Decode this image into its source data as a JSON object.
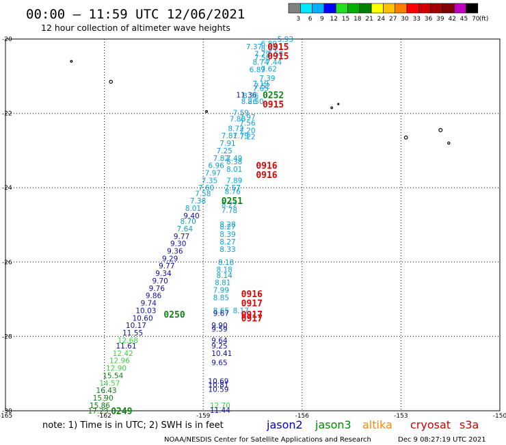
{
  "header": {
    "title": "00:00 – 11:59 UTC 12/06/2021",
    "subtitle": "12 hour collection of altimeter wave heights"
  },
  "colorbar": {
    "unit": "(ft)",
    "labels": [
      "3",
      "6",
      "9",
      "12",
      "15",
      "18",
      "21",
      "24",
      "27",
      "30",
      "33",
      "36",
      "39",
      "42",
      "45",
      "70"
    ],
    "colors": [
      "#808080",
      "#00e8ff",
      "#00b0ff",
      "#0000ff",
      "#20e020",
      "#00b000",
      "#008000",
      "#ffff00",
      "#ffc000",
      "#ff8000",
      "#ff0000",
      "#d00000",
      "#a00000",
      "#800000",
      "#c000c0",
      "#000000"
    ]
  },
  "footer": {
    "note": "note: 1) Time is in UTC; 2) SWH is in feet",
    "credit": "NOAA/NESDIS Center for Satellite Applications and Research",
    "timestamp": "Dec  9 08:27:19 UTC 2021"
  },
  "legend": [
    {
      "name": "jason2",
      "color": "#0000cc"
    },
    {
      "name": "jason3",
      "color": "#008800"
    },
    {
      "name": "altika",
      "color": "#ff8800"
    },
    {
      "name": "cryosat",
      "color": "#cc0000"
    },
    {
      "name": "s3a",
      "color": "#cc0000"
    }
  ],
  "chart_data": {
    "type": "scatter",
    "xlim": [
      -165,
      -150
    ],
    "ylim": [
      -30,
      -20
    ],
    "x_ticks": [
      -165,
      -162,
      -159,
      -156,
      -153,
      -150
    ],
    "y_ticks": [
      -20,
      -22,
      -24,
      -26,
      -28,
      -30
    ],
    "grid": true,
    "palette": {
      "cyan": "#0ca0d8",
      "blue": "#1010a0",
      "lgreen": "#40d040",
      "green": "#108010",
      "red": "#e00000"
    },
    "labels": [
      {
        "x": -157.25,
        "y": -20.12,
        "t": "6.80",
        "c": "cyan"
      },
      {
        "x": -156.75,
        "y": -20.0,
        "t": "5.93",
        "c": "cyan"
      },
      {
        "x": -157.7,
        "y": -20.2,
        "t": "7.37",
        "c": "cyan"
      },
      {
        "x": -157.45,
        "y": -20.4,
        "t": "7.79",
        "c": "cyan"
      },
      {
        "x": -157.05,
        "y": -20.4,
        "t": "6.58",
        "c": "cyan"
      },
      {
        "x": -157.25,
        "y": -20.25,
        "t": "8.64",
        "c": "cyan"
      },
      {
        "x": -157.45,
        "y": -20.5,
        "t": "7.58",
        "c": "cyan"
      },
      {
        "x": -157.5,
        "y": -20.62,
        "t": "8.74",
        "c": "cyan"
      },
      {
        "x": -157.1,
        "y": -20.62,
        "t": "7.44",
        "c": "cyan"
      },
      {
        "x": -157.6,
        "y": -20.82,
        "t": "6.89",
        "c": "cyan"
      },
      {
        "x": -157.25,
        "y": -20.8,
        "t": "7.62",
        "c": "cyan"
      },
      {
        "x": -157.3,
        "y": -21.05,
        "t": "7.39",
        "c": "cyan"
      },
      {
        "x": -157.5,
        "y": -21.2,
        "t": "7.19",
        "c": "cyan"
      },
      {
        "x": -157.5,
        "y": -21.33,
        "t": "7.65",
        "c": "cyan"
      },
      {
        "x": -157.45,
        "y": -21.26,
        "t": "7.52",
        "c": "cyan"
      },
      {
        "x": -158.0,
        "y": -21.5,
        "t": "11.36",
        "c": "blue"
      },
      {
        "x": -157.8,
        "y": -21.52,
        "t": "8.36",
        "c": "cyan"
      },
      {
        "x": -157.85,
        "y": -21.68,
        "t": "8.26",
        "c": "cyan"
      },
      {
        "x": -157.65,
        "y": -21.68,
        "t": "8.50",
        "c": "cyan"
      },
      {
        "x": -158.1,
        "y": -21.98,
        "t": "7.59",
        "c": "cyan"
      },
      {
        "x": -158.2,
        "y": -22.15,
        "t": "7.88",
        "c": "cyan"
      },
      {
        "x": -157.9,
        "y": -22.1,
        "t": "7.97",
        "c": "cyan"
      },
      {
        "x": -157.9,
        "y": -22.26,
        "t": "7.56",
        "c": "cyan"
      },
      {
        "x": -158.25,
        "y": -22.4,
        "t": "8.72",
        "c": "cyan"
      },
      {
        "x": -157.9,
        "y": -22.46,
        "t": "7.20",
        "c": "cyan"
      },
      {
        "x": -158.45,
        "y": -22.6,
        "t": "7.81",
        "c": "cyan"
      },
      {
        "x": -158.1,
        "y": -22.6,
        "t": "7.79",
        "c": "cyan"
      },
      {
        "x": -157.9,
        "y": -22.62,
        "t": "7.22",
        "c": "cyan"
      },
      {
        "x": -158.5,
        "y": -22.8,
        "t": "7.91",
        "c": "cyan"
      },
      {
        "x": -158.6,
        "y": -23.0,
        "t": "7.25",
        "c": "cyan"
      },
      {
        "x": -158.7,
        "y": -23.2,
        "t": "7.82",
        "c": "cyan"
      },
      {
        "x": -158.3,
        "y": -23.2,
        "t": "7.49",
        "c": "cyan"
      },
      {
        "x": -158.3,
        "y": -23.3,
        "t": "8.38",
        "c": "cyan"
      },
      {
        "x": -158.85,
        "y": -23.4,
        "t": "6.96",
        "c": "cyan"
      },
      {
        "x": -158.3,
        "y": -23.5,
        "t": "8.01",
        "c": "cyan"
      },
      {
        "x": -158.95,
        "y": -23.6,
        "t": "7.97",
        "c": "cyan"
      },
      {
        "x": -159.05,
        "y": -23.8,
        "t": "7.35",
        "c": "cyan"
      },
      {
        "x": -158.3,
        "y": -23.8,
        "t": "7.89",
        "c": "cyan"
      },
      {
        "x": -159.15,
        "y": -24.0,
        "t": "7.60",
        "c": "cyan"
      },
      {
        "x": -158.35,
        "y": -24.0,
        "t": "7.57",
        "c": "cyan"
      },
      {
        "x": -158.35,
        "y": -24.1,
        "t": "8.76",
        "c": "cyan"
      },
      {
        "x": -159.25,
        "y": -24.15,
        "t": "7.58",
        "c": "cyan"
      },
      {
        "x": -159.4,
        "y": -24.35,
        "t": "7.38",
        "c": "cyan"
      },
      {
        "x": -158.45,
        "y": -24.45,
        "t": "8.22",
        "c": "cyan"
      },
      {
        "x": -159.55,
        "y": -24.55,
        "t": "8.01",
        "c": "cyan"
      },
      {
        "x": -158.45,
        "y": -24.6,
        "t": "7.78",
        "c": "cyan"
      },
      {
        "x": -159.6,
        "y": -24.75,
        "t": "9.40",
        "c": "blue"
      },
      {
        "x": -159.7,
        "y": -24.9,
        "t": "8.70",
        "c": "cyan"
      },
      {
        "x": -158.5,
        "y": -24.98,
        "t": "8.28",
        "c": "cyan"
      },
      {
        "x": -158.5,
        "y": -25.05,
        "t": "8.27",
        "c": "cyan"
      },
      {
        "x": -159.8,
        "y": -25.1,
        "t": "7.64",
        "c": "cyan"
      },
      {
        "x": -158.5,
        "y": -25.25,
        "t": "8.39",
        "c": "cyan"
      },
      {
        "x": -159.9,
        "y": -25.3,
        "t": "9.77",
        "c": "blue"
      },
      {
        "x": -158.5,
        "y": -25.45,
        "t": "8.27",
        "c": "cyan"
      },
      {
        "x": -160.0,
        "y": -25.5,
        "t": "9.30",
        "c": "blue"
      },
      {
        "x": -158.5,
        "y": -25.65,
        "t": "8.33",
        "c": "cyan"
      },
      {
        "x": -160.1,
        "y": -25.7,
        "t": "9.36",
        "c": "blue"
      },
      {
        "x": -160.25,
        "y": -25.9,
        "t": "9.29",
        "c": "blue"
      },
      {
        "x": -158.55,
        "y": -26.0,
        "t": "8.18",
        "c": "cyan"
      },
      {
        "x": -160.35,
        "y": -26.1,
        "t": "9.77",
        "c": "blue"
      },
      {
        "x": -158.6,
        "y": -26.2,
        "t": "8.18",
        "c": "cyan"
      },
      {
        "x": -160.45,
        "y": -26.3,
        "t": "9.34",
        "c": "blue"
      },
      {
        "x": -158.6,
        "y": -26.35,
        "t": "8.14",
        "c": "cyan"
      },
      {
        "x": -160.55,
        "y": -26.5,
        "t": "9.70",
        "c": "blue"
      },
      {
        "x": -158.65,
        "y": -26.55,
        "t": "8.81",
        "c": "cyan"
      },
      {
        "x": -160.65,
        "y": -26.7,
        "t": "9.76",
        "c": "blue"
      },
      {
        "x": -158.7,
        "y": -26.75,
        "t": "7.99",
        "c": "cyan"
      },
      {
        "x": -160.75,
        "y": -26.9,
        "t": "9.86",
        "c": "blue"
      },
      {
        "x": -158.7,
        "y": -26.95,
        "t": "8.85",
        "c": "cyan"
      },
      {
        "x": -160.9,
        "y": -27.1,
        "t": "9.74",
        "c": "blue"
      },
      {
        "x": -161.05,
        "y": -27.3,
        "t": "10.03",
        "c": "blue"
      },
      {
        "x": -158.7,
        "y": -27.3,
        "t": "8.65",
        "c": "cyan"
      },
      {
        "x": -158.1,
        "y": -27.3,
        "t": "8.17",
        "c": "cyan"
      },
      {
        "x": -158.7,
        "y": -27.38,
        "t": "9.67",
        "c": "blue"
      },
      {
        "x": -161.15,
        "y": -27.5,
        "t": "10.60",
        "c": "blue"
      },
      {
        "x": -161.35,
        "y": -27.7,
        "t": "10.17",
        "c": "blue"
      },
      {
        "x": -158.75,
        "y": -27.7,
        "t": "9.90",
        "c": "blue"
      },
      {
        "x": -158.75,
        "y": -27.8,
        "t": "9.59",
        "c": "blue"
      },
      {
        "x": -161.45,
        "y": -27.9,
        "t": "11.55",
        "c": "blue"
      },
      {
        "x": -161.6,
        "y": -28.1,
        "t": "12.68",
        "c": "lgreen"
      },
      {
        "x": -158.75,
        "y": -28.1,
        "t": "9.64",
        "c": "blue"
      },
      {
        "x": -161.65,
        "y": -28.25,
        "t": "11.61",
        "c": "blue"
      },
      {
        "x": -158.75,
        "y": -28.25,
        "t": "9.25",
        "c": "blue"
      },
      {
        "x": -161.75,
        "y": -28.45,
        "t": "12.42",
        "c": "lgreen"
      },
      {
        "x": -158.75,
        "y": -28.45,
        "t": "10.41",
        "c": "blue"
      },
      {
        "x": -161.85,
        "y": -28.65,
        "t": "12.96",
        "c": "lgreen"
      },
      {
        "x": -158.75,
        "y": -28.7,
        "t": "9.65",
        "c": "blue"
      },
      {
        "x": -161.95,
        "y": -28.85,
        "t": "12.90",
        "c": "lgreen"
      },
      {
        "x": -162.05,
        "y": -29.05,
        "t": "15.54",
        "c": "green"
      },
      {
        "x": -158.85,
        "y": -29.2,
        "t": "10.69",
        "c": "blue"
      },
      {
        "x": -162.15,
        "y": -29.25,
        "t": "14.57",
        "c": "lgreen"
      },
      {
        "x": -158.85,
        "y": -29.3,
        "t": "10.81",
        "c": "blue"
      },
      {
        "x": -158.85,
        "y": -29.42,
        "t": "10.59",
        "c": "blue"
      },
      {
        "x": -162.25,
        "y": -29.45,
        "t": "16.43",
        "c": "green"
      },
      {
        "x": -162.35,
        "y": -29.65,
        "t": "15.90",
        "c": "green"
      },
      {
        "x": -162.45,
        "y": -29.85,
        "t": "15.86",
        "c": "green"
      },
      {
        "x": -158.8,
        "y": -29.85,
        "t": "12.70",
        "c": "lgreen"
      },
      {
        "x": -162.5,
        "y": -30.0,
        "t": "17.23",
        "c": "green"
      },
      {
        "x": -158.8,
        "y": -29.98,
        "t": "11.44",
        "c": "blue"
      }
    ],
    "times": [
      {
        "x": -157.05,
        "y": -20.2,
        "t": "0915",
        "c": "red"
      },
      {
        "x": -157.05,
        "y": -20.45,
        "t": "0915",
        "c": "red"
      },
      {
        "x": -157.2,
        "y": -21.5,
        "t": "0252",
        "c": "green"
      },
      {
        "x": -157.2,
        "y": -21.75,
        "t": "0915",
        "c": "red"
      },
      {
        "x": -157.4,
        "y": -23.4,
        "t": "0916",
        "c": "red"
      },
      {
        "x": -157.4,
        "y": -23.65,
        "t": "0916",
        "c": "red"
      },
      {
        "x": -158.45,
        "y": -24.35,
        "t": "0251",
        "c": "green"
      },
      {
        "x": -157.85,
        "y": -26.85,
        "t": "0916",
        "c": "red"
      },
      {
        "x": -157.85,
        "y": -27.1,
        "t": "0917",
        "c": "red"
      },
      {
        "x": -157.85,
        "y": -27.4,
        "t": "0917",
        "c": "red"
      },
      {
        "x": -157.85,
        "y": -27.5,
        "t": "0917",
        "c": "red"
      },
      {
        "x": -160.2,
        "y": -27.4,
        "t": "0250",
        "c": "green"
      },
      {
        "x": -161.8,
        "y": -30.0,
        "t": "0249",
        "c": "green"
      }
    ],
    "islands": [
      {
        "x": -163.0,
        "y": -20.6,
        "r": 1.3
      },
      {
        "x": -161.8,
        "y": -21.15,
        "r": 2.2
      },
      {
        "x": -155.1,
        "y": -21.85,
        "r": 1.3
      },
      {
        "x": -154.9,
        "y": -21.75,
        "r": 1.0
      },
      {
        "x": -152.85,
        "y": -22.65,
        "r": 2.3
      },
      {
        "x": -151.8,
        "y": -22.45,
        "r": 2.4
      },
      {
        "x": -151.55,
        "y": -22.8,
        "r": 1.6
      },
      {
        "x": -158.9,
        "y": -21.95,
        "r": 1.4
      }
    ]
  }
}
